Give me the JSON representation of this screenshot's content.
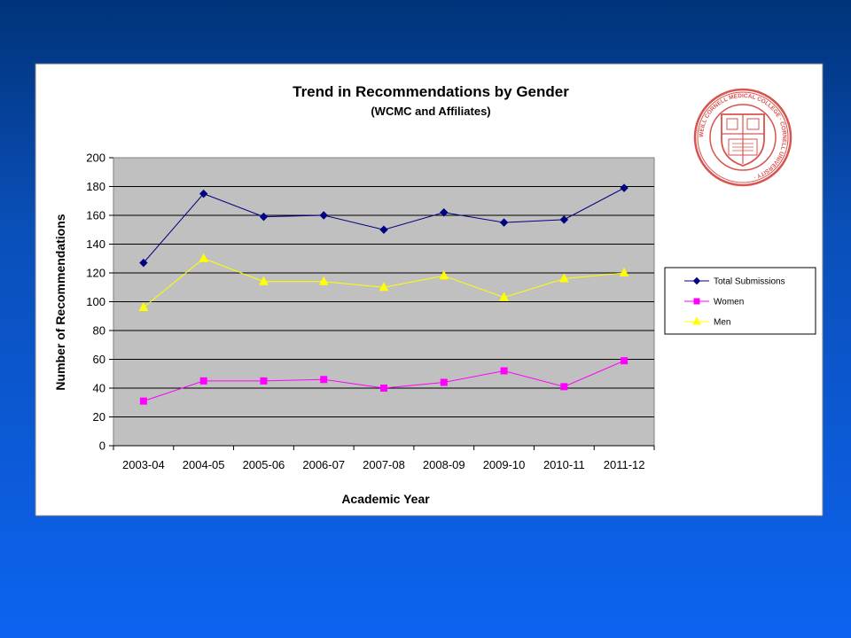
{
  "chart_data": {
    "type": "line",
    "title": "Trend in Recommendations by Gender",
    "subtitle": "(WCMC and Affiliates)",
    "xlabel": "Academic Year",
    "ylabel": "Number of Recommendations",
    "categories": [
      "2003-04",
      "2004-05",
      "2005-06",
      "2006-07",
      "2007-08",
      "2008-09",
      "2009-10",
      "2010-11",
      "2011-12"
    ],
    "ylim": [
      0,
      200
    ],
    "yticks": [
      0,
      20,
      40,
      60,
      80,
      100,
      120,
      140,
      160,
      180,
      200
    ],
    "grid": true,
    "legend": "right",
    "series": [
      {
        "name": "Total Submissions",
        "color": "#000080",
        "marker": "diamond",
        "values": [
          127,
          175,
          159,
          160,
          150,
          162,
          155,
          157,
          179
        ]
      },
      {
        "name": "Women",
        "color": "#ff00ff",
        "marker": "square",
        "values": [
          31,
          45,
          45,
          46,
          40,
          44,
          52,
          41,
          59
        ]
      },
      {
        "name": "Men",
        "color": "#ffff00",
        "marker": "triangle",
        "values": [
          96,
          130,
          114,
          114,
          110,
          118,
          103,
          116,
          120
        ]
      }
    ]
  },
  "logo": {
    "name": "weill-cornell-seal",
    "color": "#d9534f",
    "text": "WEILL CORNELL MEDICAL COLLEGE · CORNELL UNIVERSITY"
  }
}
